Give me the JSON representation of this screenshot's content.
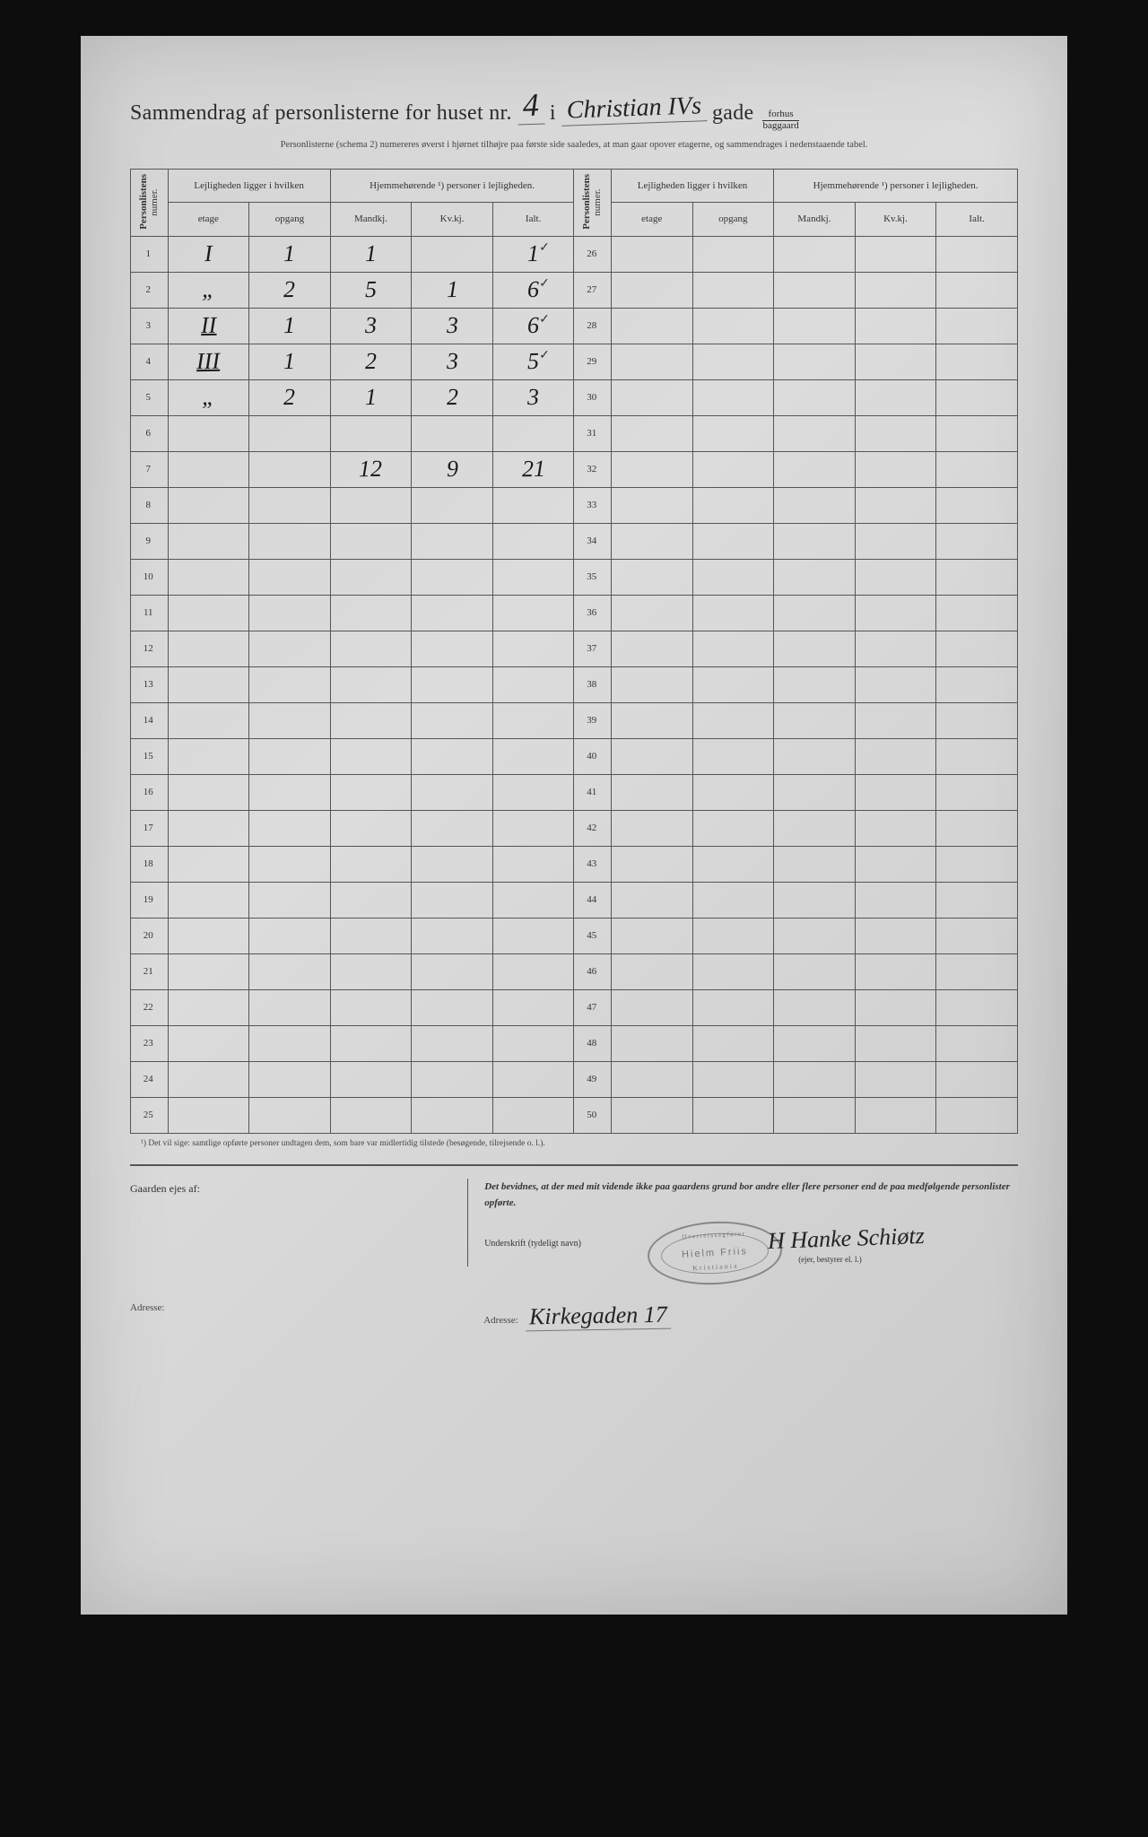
{
  "header": {
    "title_pre": "Sammendrag af personlisterne for huset nr.",
    "house_nr_hand": "4",
    "title_mid_i": "i",
    "street_hand": "Christian IVs",
    "title_gade": "gade",
    "fraction_top": "forhus",
    "fraction_bot": "baggaard"
  },
  "subhead": "Personlisterne (schema 2) numereres øverst i hjørnet tilhøjre paa første side saaledes, at man gaar opover etagerne, og sammendrages i nedenstaaende tabel.",
  "table": {
    "vcol_label": "Personlistens",
    "vcol_sub": "numer.",
    "group_left": "Lejligheden ligger i hvilken",
    "group_right": "Hjemmehørende ¹) personer i lejligheden.",
    "cols": {
      "etage": "etage",
      "opgang": "opgang",
      "mandkj": "Mandkj.",
      "kvkj": "Kv.kj.",
      "ialt": "Ialt."
    },
    "rows_left": [
      {
        "n": 1,
        "etage": "I",
        "opgang": "1",
        "m": "1",
        "k": "",
        "i": "1",
        "tick": true
      },
      {
        "n": 2,
        "etage": "„",
        "opgang": "2",
        "m": "5",
        "k": "1",
        "i": "6",
        "tick": true
      },
      {
        "n": 3,
        "etage": "II",
        "etage_ul": true,
        "opgang": "1",
        "m": "3",
        "k": "3",
        "i": "6",
        "tick": true
      },
      {
        "n": 4,
        "etage": "III",
        "etage_ul": true,
        "opgang": "1",
        "m": "2",
        "k": "3",
        "i": "5",
        "tick": true
      },
      {
        "n": 5,
        "etage": "„",
        "opgang": "2",
        "m": "1",
        "k": "2",
        "i": "3",
        "tick": false
      },
      {
        "n": 6,
        "etage": "",
        "opgang": "",
        "m": "",
        "k": "",
        "i": "",
        "tick": false
      },
      {
        "n": 7,
        "etage": "",
        "opgang": "",
        "m": "12",
        "k": "9",
        "i": "21",
        "tick": false
      },
      {
        "n": 8,
        "etage": "",
        "opgang": "",
        "m": "",
        "k": "",
        "i": "",
        "tick": false
      },
      {
        "n": 9
      },
      {
        "n": 10
      },
      {
        "n": 11
      },
      {
        "n": 12
      },
      {
        "n": 13
      },
      {
        "n": 14
      },
      {
        "n": 15
      },
      {
        "n": 16
      },
      {
        "n": 17
      },
      {
        "n": 18
      },
      {
        "n": 19
      },
      {
        "n": 20
      },
      {
        "n": 21
      },
      {
        "n": 22
      },
      {
        "n": 23
      },
      {
        "n": 24
      },
      {
        "n": 25
      }
    ],
    "right_start": 26,
    "right_count": 25
  },
  "footnote": "¹) Det vil sige: samtlige opførte personer undtagen dem, som bare var midlertidig tilstede (besøgende, tilrejsende o. l.).",
  "footer": {
    "left_label": "Gaarden ejes af:",
    "left_addr_label": "Adresse:",
    "cert_text": "Det bevidnes, at der med mit vidende ikke paa gaardens grund bor andre eller flere personer end de paa medfølgende personlister opførte.",
    "undersk_label": "Underskrift (tydeligt navn)",
    "undersk_suffix": "(ejer, bestyrer el. l.)",
    "stamp_title": "Overretssagfører",
    "stamp_name": "Hielm Friis",
    "stamp_city": "Kristiania",
    "signature": "H Hanke Schiøtz",
    "addr_label": "Adresse:",
    "addr_value": "Kirkegaden 17"
  }
}
